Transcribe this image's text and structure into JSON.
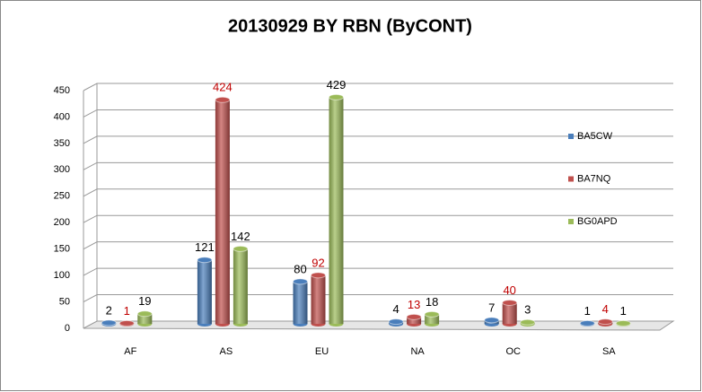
{
  "chart_data": {
    "type": "bar3d",
    "title": "20130929 BY RBN (ByCONT)",
    "categories": [
      "AF",
      "AS",
      "EU",
      "NA",
      "OC",
      "SA"
    ],
    "series": [
      {
        "name": "BA5CW",
        "color": "#4a7ebb",
        "label_color": "#000000",
        "values": [
          2,
          121,
          80,
          4,
          7,
          1
        ]
      },
      {
        "name": "BA7NQ",
        "color": "#c0504d",
        "label_color": "#c00000",
        "values": [
          1,
          424,
          92,
          13,
          40,
          4
        ]
      },
      {
        "name": "BG0APD",
        "color": "#9bbb59",
        "label_color": "#000000",
        "values": [
          19,
          142,
          429,
          18,
          3,
          1
        ]
      }
    ],
    "ylim": [
      0,
      450
    ],
    "yticks": [
      0,
      50,
      100,
      150,
      200,
      250,
      300,
      350,
      400,
      450
    ],
    "grid": true,
    "legend": "right"
  }
}
